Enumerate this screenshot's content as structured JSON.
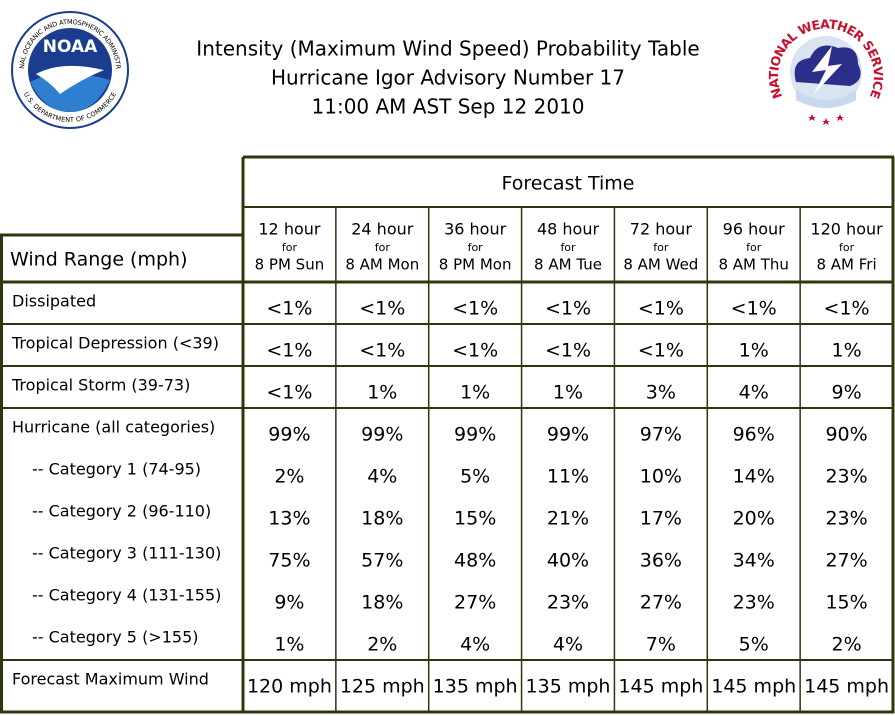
{
  "header": {
    "title_lines": [
      "Intensity (Maximum Wind Speed) Probability Table",
      "Hurricane Igor Advisory Number 17",
      "11:00 AM AST Sep 12 2010"
    ],
    "noaa_logo": {
      "acronym": "NOAA",
      "ring_top": "NATIONAL OCEANIC AND ATMOSPHERIC ADMINISTRATION",
      "ring_bottom": "U.S. DEPARTMENT OF COMMERCE"
    },
    "nws_logo": {
      "ring": "NATIONAL WEATHER SERVICE"
    }
  },
  "table": {
    "forecast_time": "Forecast Time",
    "row_header": "Wind Range (mph)",
    "columns": [
      {
        "hour": "12 hour",
        "for": "for",
        "time": "8 PM Sun"
      },
      {
        "hour": "24 hour",
        "for": "for",
        "time": "8 AM Mon"
      },
      {
        "hour": "36 hour",
        "for": "for",
        "time": "8 PM Mon"
      },
      {
        "hour": "48 hour",
        "for": "for",
        "time": "8 AM Tue"
      },
      {
        "hour": "72 hour",
        "for": "for",
        "time": "8 AM Wed"
      },
      {
        "hour": "96 hour",
        "for": "for",
        "time": "8 AM Thu"
      },
      {
        "hour": "120 hour",
        "for": "for",
        "time": "8 AM Fri"
      }
    ],
    "row_groups": [
      {
        "rows": [
          {
            "label": "Dissipated",
            "values": [
              "<1%",
              "<1%",
              "<1%",
              "<1%",
              "<1%",
              "<1%",
              "<1%"
            ]
          }
        ]
      },
      {
        "rows": [
          {
            "label": "Tropical Depression (<39)",
            "values": [
              "<1%",
              "<1%",
              "<1%",
              "<1%",
              "<1%",
              "1%",
              "1%"
            ]
          }
        ]
      },
      {
        "rows": [
          {
            "label": "Tropical Storm (39-73)",
            "values": [
              "<1%",
              "1%",
              "1%",
              "1%",
              "3%",
              "4%",
              "9%"
            ]
          }
        ]
      },
      {
        "rows": [
          {
            "label": "Hurricane (all categories)",
            "values": [
              "99%",
              "99%",
              "99%",
              "99%",
              "97%",
              "96%",
              "90%"
            ]
          },
          {
            "label": "-- Category 1 (74-95)",
            "values": [
              "2%",
              "4%",
              "5%",
              "11%",
              "10%",
              "14%",
              "23%"
            ]
          },
          {
            "label": "-- Category 2 (96-110)",
            "values": [
              "13%",
              "18%",
              "15%",
              "21%",
              "17%",
              "20%",
              "23%"
            ]
          },
          {
            "label": "-- Category 3 (111-130)",
            "values": [
              "75%",
              "57%",
              "48%",
              "40%",
              "36%",
              "34%",
              "27%"
            ]
          },
          {
            "label": "-- Category 4 (131-155)",
            "values": [
              "9%",
              "18%",
              "27%",
              "23%",
              "27%",
              "23%",
              "15%"
            ]
          },
          {
            "label": "-- Category 5 (>155)",
            "values": [
              "1%",
              "2%",
              "4%",
              "4%",
              "7%",
              "5%",
              "2%"
            ]
          }
        ]
      },
      {
        "rows": [
          {
            "label": "Forecast Maximum Wind",
            "values": [
              "120 mph",
              "125 mph",
              "135 mph",
              "135 mph",
              "145 mph",
              "145 mph",
              "145 mph"
            ]
          }
        ]
      }
    ]
  }
}
